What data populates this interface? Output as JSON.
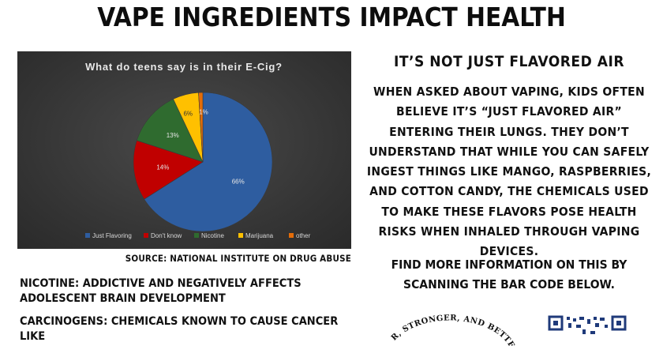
{
  "page": {
    "title": "VAPE INGREDIENTS IMPACT HEALTH",
    "source": "SOURCE: NATIONAL INSTITUTE ON DRUG ABUSE",
    "left_items": [
      "NICOTINE: ADDICTIVE AND NEGATIVELY AFFECTS ADOLESCENT BRAIN DEVELOPMENT",
      "CARCINOGENS: CHEMICALS KNOWN TO CAUSE CANCER LIKE"
    ],
    "right_heading": "IT’S NOT JUST FLAVORED AIR",
    "right_body": "WHEN ASKED ABOUT VAPING, KIDS OFTEN BELIEVE IT’S “JUST FLAVORED AIR” ENTERING THEIR LUNGS. THEY DON’T UNDERSTAND THAT WHILE YOU CAN SAFELY INGEST THINGS LIKE MANGO, RASPBERRIES, AND COTTON CANDY, THE CHEMICALS USED TO MAKE THESE FLAVORS POSE HEALTH RISKS WHEN INHALED THROUGH VAPING DEVICES.",
    "right_more": "FIND MORE INFORMATION ON THIS BY SCANNING THE BAR CODE BELOW.",
    "logo_text": "R, STRONGER, AND BETTER TOGE"
  },
  "chart_data": {
    "type": "pie",
    "title": "What do teens say is in their E-Cig?",
    "categories": [
      "Just Flavoring",
      "Don't know",
      "Nicotine",
      "Marijuana",
      "other"
    ],
    "values": [
      66,
      14,
      13,
      6,
      1
    ],
    "labels": [
      "66%",
      "14%",
      "13%",
      "6%",
      "1%"
    ],
    "colors": [
      "#2e5da0",
      "#c00000",
      "#2f6b2f",
      "#ffc000",
      "#e36c09"
    ],
    "legend": "bottom"
  }
}
